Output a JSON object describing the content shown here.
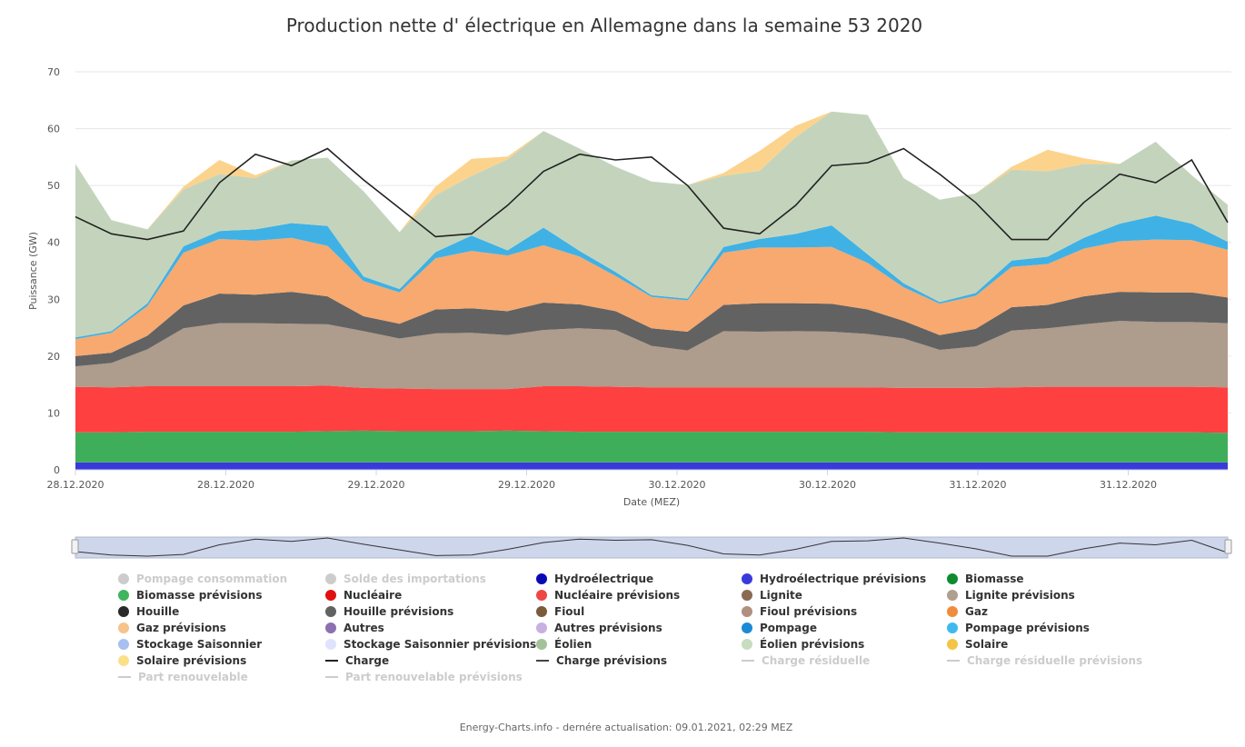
{
  "title": "Production nette d' électrique en Allemagne dans la semaine 53 2020",
  "footer": "Energy-Charts.info - dernére actualisation: 09.01.2021, 02:29 MEZ",
  "chart_data": {
    "type": "area",
    "stacked": true,
    "title": "Production nette d' électrique en Allemagne dans la semaine 53 2020",
    "xlabel": "Date (MEZ)",
    "ylabel": "Puissance (GW)",
    "ylim": [
      0,
      70
    ],
    "yticks": [
      0,
      10,
      20,
      30,
      40,
      50,
      60,
      70
    ],
    "x_tick_labels": [
      "28.12.2020",
      "28.12.2020",
      "29.12.2020",
      "29.12.2020",
      "30.12.2020",
      "30.12.2020",
      "31.12.2020",
      "31.12.2020"
    ],
    "x": [
      0,
      3,
      6,
      9,
      12,
      15,
      18,
      21,
      24,
      27,
      30,
      33,
      36,
      39,
      42,
      45,
      48,
      51,
      54,
      57,
      60,
      63,
      66,
      69,
      72,
      75,
      78,
      81,
      84,
      87,
      90,
      93,
      96
    ],
    "x_unit": "hours since 28.12.2020 00:00",
    "series": [
      {
        "name": "Hydroélectrique prévisions",
        "color": "#3a3adb",
        "values": [
          1.3,
          1.3,
          1.3,
          1.3,
          1.3,
          1.3,
          1.3,
          1.3,
          1.3,
          1.3,
          1.3,
          1.3,
          1.3,
          1.3,
          1.3,
          1.3,
          1.3,
          1.3,
          1.3,
          1.3,
          1.3,
          1.3,
          1.3,
          1.3,
          1.3,
          1.3,
          1.3,
          1.3,
          1.3,
          1.3,
          1.3,
          1.3,
          1.3
        ]
      },
      {
        "name": "Biomasse prévisions",
        "color": "#3fae5b",
        "values": [
          5.3,
          5.3,
          5.4,
          5.4,
          5.4,
          5.4,
          5.4,
          5.5,
          5.6,
          5.5,
          5.5,
          5.5,
          5.6,
          5.5,
          5.4,
          5.4,
          5.4,
          5.4,
          5.4,
          5.4,
          5.4,
          5.4,
          5.4,
          5.3,
          5.3,
          5.3,
          5.3,
          5.3,
          5.3,
          5.3,
          5.3,
          5.3,
          5.2
        ]
      },
      {
        "name": "Nucléaire prévisions",
        "color": "#ff4040",
        "values": [
          8.0,
          7.9,
          8.0,
          8.0,
          8.0,
          8.0,
          8.0,
          8.0,
          7.5,
          7.5,
          7.4,
          7.4,
          7.3,
          7.9,
          8.0,
          7.9,
          7.8,
          7.8,
          7.8,
          7.8,
          7.8,
          7.8,
          7.8,
          7.8,
          7.8,
          7.8,
          7.9,
          8.0,
          8.0,
          8.0,
          8.0,
          8.0,
          8.0
        ]
      },
      {
        "name": "Lignite prévisions",
        "color": "#ae9c8c",
        "values": [
          3.6,
          4.3,
          6.5,
          10.2,
          11.1,
          11.1,
          11.0,
          10.8,
          10.0,
          8.8,
          9.8,
          9.9,
          9.5,
          9.9,
          10.2,
          10.0,
          7.3,
          6.5,
          9.9,
          9.8,
          9.9,
          9.8,
          9.4,
          8.7,
          6.7,
          7.3,
          10.0,
          10.3,
          11.0,
          11.6,
          11.4,
          11.4,
          11.3
        ]
      },
      {
        "name": "Houille prévisions",
        "color": "#626262",
        "values": [
          1.8,
          1.8,
          2.4,
          4.0,
          5.2,
          5.0,
          5.6,
          4.9,
          2.6,
          2.6,
          4.2,
          4.3,
          4.2,
          4.8,
          4.2,
          3.3,
          3.1,
          3.3,
          4.6,
          5.0,
          4.9,
          4.9,
          4.3,
          3.1,
          2.6,
          3.1,
          4.1,
          4.1,
          4.9,
          5.1,
          5.2,
          5.2,
          4.5
        ]
      },
      {
        "name": "Gaz prévisions",
        "color": "#f7a96f",
        "values": [
          3.0,
          3.5,
          5.2,
          9.3,
          9.6,
          9.5,
          9.5,
          8.9,
          6.2,
          5.5,
          9.0,
          10.1,
          9.8,
          10.1,
          8.4,
          6.2,
          5.5,
          5.5,
          9.2,
          9.8,
          9.8,
          10.0,
          8.2,
          5.9,
          5.5,
          5.8,
          7.1,
          7.2,
          8.4,
          8.9,
          9.3,
          9.2,
          8.4
        ]
      },
      {
        "name": "Pompage prévisions",
        "color": "#3fb1e5",
        "values": [
          0.3,
          0.3,
          0.5,
          1.1,
          1.4,
          2.0,
          2.6,
          3.5,
          0.8,
          0.6,
          1.1,
          2.7,
          0.9,
          3.1,
          1.0,
          0.7,
          0.3,
          0.3,
          1.0,
          1.5,
          2.4,
          3.8,
          1.5,
          0.7,
          0.3,
          0.5,
          1.1,
          1.3,
          1.9,
          3.1,
          4.2,
          2.9,
          1.4
        ]
      },
      {
        "name": "Éolien prévisions",
        "color": "#c4d4bc",
        "values": [
          30.5,
          19.5,
          13.0,
          10.0,
          10.0,
          9.0,
          11.0,
          12.0,
          15.0,
          10.0,
          10.0,
          10.5,
          16.0,
          17.0,
          18.0,
          18.5,
          20.0,
          20.0,
          12.5,
          12.0,
          17.0,
          20.0,
          24.5,
          18.5,
          18.0,
          17.5,
          16.0,
          15.0,
          13.0,
          10.5,
          13.0,
          8.5,
          6.5
        ]
      },
      {
        "name": "Solaire prévisions",
        "color": "#fcd38c",
        "values": [
          0,
          0,
          0,
          0.5,
          2.5,
          0.5,
          0,
          0,
          0,
          0,
          1.5,
          3.0,
          0.5,
          0,
          0,
          0,
          0,
          0,
          0.5,
          3.5,
          2.0,
          0,
          0,
          0,
          0,
          0,
          0.5,
          3.8,
          1.0,
          0,
          0,
          0,
          0
        ]
      }
    ],
    "line_series": [
      {
        "name": "Charge",
        "color": "#222222",
        "values": [
          44.5,
          41.5,
          40.5,
          42.0,
          50.5,
          55.5,
          53.5,
          56.5,
          51.0,
          46.0,
          41.0,
          41.5,
          46.5,
          52.5,
          55.5,
          54.5,
          55.0,
          50.0,
          42.5,
          41.5,
          46.5,
          53.5,
          54.0,
          56.5,
          52.0,
          47.0,
          40.5,
          40.5,
          47.0,
          52.0,
          50.5,
          54.5,
          43.5
        ]
      }
    ],
    "legend": [
      {
        "label": "Pompage consommation",
        "color": "#cccccc",
        "kind": "dot",
        "active": false
      },
      {
        "label": "Solde des importations",
        "color": "#cccccc",
        "kind": "dot",
        "active": false
      },
      {
        "label": "Hydroélectrique",
        "color": "#0a0ab4",
        "kind": "dot",
        "active": true
      },
      {
        "label": "Hydroélectrique prévisions",
        "color": "#3a3adb",
        "kind": "dot",
        "active": true
      },
      {
        "label": "Biomasse",
        "color": "#0f8a2e",
        "kind": "dot",
        "active": true
      },
      {
        "label": "Biomasse prévisions",
        "color": "#3fb55e",
        "kind": "dot",
        "active": true
      },
      {
        "label": "Nucléaire",
        "color": "#e01010",
        "kind": "dot",
        "active": true
      },
      {
        "label": "Nucléaire prévisions",
        "color": "#f04545",
        "kind": "dot",
        "active": true
      },
      {
        "label": "Lignite",
        "color": "#8a6a52",
        "kind": "dot",
        "active": true
      },
      {
        "label": "Lignite prévisions",
        "color": "#b09e8e",
        "kind": "dot",
        "active": true
      },
      {
        "label": "Houille",
        "color": "#2a2a2a",
        "kind": "dot",
        "active": true
      },
      {
        "label": "Houille prévisions",
        "color": "#626262",
        "kind": "dot",
        "active": true
      },
      {
        "label": "Fioul",
        "color": "#7a5c3c",
        "kind": "dot",
        "active": true
      },
      {
        "label": "Fioul prévisions",
        "color": "#b09080",
        "kind": "dot",
        "active": true
      },
      {
        "label": "Gaz",
        "color": "#f08c3c",
        "kind": "dot",
        "active": true
      },
      {
        "label": "Gaz prévisions",
        "color": "#f6c38a",
        "kind": "dot",
        "active": true
      },
      {
        "label": "Autres",
        "color": "#8c70b0",
        "kind": "dot",
        "active": true
      },
      {
        "label": "Autres prévisions",
        "color": "#c8b0e0",
        "kind": "dot",
        "active": true
      },
      {
        "label": "Pompage",
        "color": "#1a8ad6",
        "kind": "dot",
        "active": true
      },
      {
        "label": "Pompage prévisions",
        "color": "#3fbaf0",
        "kind": "dot",
        "active": true
      },
      {
        "label": "Stockage Saisonnier",
        "color": "#a8bff0",
        "kind": "dot",
        "active": true
      },
      {
        "label": "Stockage Saisonnier prévisions",
        "color": "#dfe3fb",
        "kind": "dot",
        "active": true
      },
      {
        "label": "Éolien",
        "color": "#a4c29a",
        "kind": "dot",
        "active": true
      },
      {
        "label": "Éolien prévisions",
        "color": "#c8dcc0",
        "kind": "dot",
        "active": true
      },
      {
        "label": "Solaire",
        "color": "#f6c445",
        "kind": "dot",
        "active": true
      },
      {
        "label": "Solaire prévisions",
        "color": "#fbe08a",
        "kind": "dot",
        "active": true
      },
      {
        "label": "Charge",
        "color": "#222222",
        "kind": "line",
        "active": true
      },
      {
        "label": "Charge prévisions",
        "color": "#444444",
        "kind": "line",
        "active": true
      },
      {
        "label": "Charge résiduelle",
        "color": "#cccccc",
        "kind": "line",
        "active": false
      },
      {
        "label": "Charge résiduelle prévisions",
        "color": "#cccccc",
        "kind": "line",
        "active": false
      },
      {
        "label": "Part renouvelable",
        "color": "#cccccc",
        "kind": "line",
        "active": false
      },
      {
        "label": "Part renouvelable prévisions",
        "color": "#cccccc",
        "kind": "line",
        "active": false
      }
    ]
  }
}
